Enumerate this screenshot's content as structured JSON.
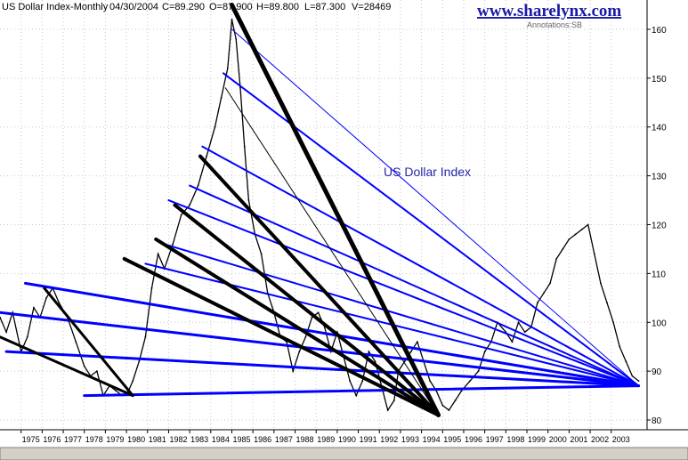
{
  "header": {
    "title": "US Dollar Index-Monthly",
    "date": "04/30/2004",
    "close": "C=89.290",
    "open": "O=87.900",
    "high": "H=89.800",
    "low": "L=87.300",
    "volume": "V=28469"
  },
  "brand": "www.sharelynx.com",
  "annotations_credit": "Annotations:SB",
  "chart_data": {
    "type": "line",
    "title": "",
    "xlabel": "",
    "ylabel": "",
    "annotation": "US Dollar Index",
    "ylim": [
      78,
      166
    ],
    "xlim": [
      1974.0,
      2004.7
    ],
    "y_ticks": [
      80,
      90,
      100,
      110,
      120,
      130,
      140,
      150,
      160
    ],
    "x_tick_labels": [
      "1975",
      "1976",
      "1977",
      "1978",
      "1979",
      "1980",
      "1981",
      "1982",
      "1983",
      "1984",
      "1985",
      "1986",
      "1987",
      "1988",
      "1989",
      "1990",
      "1991",
      "1992",
      "1993",
      "1994",
      "1995",
      "1996",
      "1997",
      "1998",
      "1999",
      "2000",
      "2001",
      "2002",
      "2003"
    ],
    "grid": true,
    "series": [
      {
        "x": [
          1974.0,
          1974.3,
          1974.6,
          1975.0,
          1975.3,
          1975.6,
          1975.9,
          1976.2,
          1976.5,
          1976.8,
          1977.2,
          1977.6,
          1978.0,
          1978.3,
          1978.6,
          1978.9,
          1979.2,
          1979.5,
          1979.8,
          1980.1,
          1980.3,
          1980.6,
          1980.9,
          1981.2,
          1981.5,
          1981.8,
          1982.2,
          1982.6,
          1983.0,
          1983.4,
          1983.8,
          1984.2,
          1984.5,
          1984.8,
          1985.0,
          1985.2,
          1985.4,
          1985.6,
          1985.8,
          1986.1,
          1986.4,
          1986.7,
          1987.0,
          1987.3,
          1987.6,
          1987.9,
          1988.2,
          1988.5,
          1988.8,
          1989.1,
          1989.4,
          1989.7,
          1990.0,
          1990.3,
          1990.6,
          1990.9,
          1991.2,
          1991.5,
          1991.8,
          1992.1,
          1992.4,
          1992.7,
          1992.9,
          1993.2,
          1993.5,
          1993.8,
          1994.1,
          1994.4,
          1994.7,
          1995.0,
          1995.3,
          1995.6,
          1995.9,
          1996.3,
          1996.7,
          1997.0,
          1997.3,
          1997.6,
          1998.0,
          1998.3,
          1998.6,
          1998.9,
          1999.2,
          1999.5,
          1999.8,
          2000.1,
          2000.4,
          2000.7,
          2001.0,
          2001.3,
          2001.6,
          2001.9,
          2002.2,
          2002.5,
          2002.8,
          2003.1,
          2003.4,
          2003.7,
          2004.0,
          2004.3
        ],
        "y": [
          101,
          98,
          102,
          94,
          97,
          103,
          101,
          105,
          107,
          104,
          101,
          96,
          91,
          89,
          90,
          85,
          87,
          86,
          85,
          86,
          88,
          92,
          97,
          107,
          114,
          111,
          116,
          122,
          124,
          128,
          134,
          140,
          146,
          152,
          162,
          158,
          148,
          136,
          125,
          118,
          114,
          106,
          102,
          97,
          96,
          90,
          94,
          97,
          101,
          102,
          99,
          94,
          98,
          93,
          88,
          85,
          88,
          94,
          92,
          87,
          82,
          84,
          90,
          92,
          94,
          96,
          92,
          88,
          86,
          83,
          82,
          84,
          86,
          88,
          90,
          94,
          96,
          100,
          98,
          96,
          100,
          98,
          99,
          104,
          106,
          108,
          113,
          115,
          117,
          118,
          119,
          120,
          114,
          108,
          104,
          100,
          95,
          92,
          89,
          88
        ]
      }
    ],
    "trend_lines": [
      {
        "color": "#0000ff",
        "width": 1,
        "from": [
          1985.0,
          160
        ],
        "to": [
          2004.3,
          87
        ]
      },
      {
        "color": "#0000ff",
        "width": 2,
        "from": [
          1984.6,
          151
        ],
        "to": [
          2004.3,
          87
        ]
      },
      {
        "color": "#0000ff",
        "width": 2,
        "from": [
          1983.6,
          136
        ],
        "to": [
          2004.3,
          87
        ]
      },
      {
        "color": "#0000ff",
        "width": 2,
        "from": [
          1983.0,
          128
        ],
        "to": [
          2004.3,
          87
        ]
      },
      {
        "color": "#0000ff",
        "width": 2,
        "from": [
          1982.0,
          125
        ],
        "to": [
          2004.3,
          87
        ]
      },
      {
        "color": "#0000ff",
        "width": 2,
        "from": [
          1981.8,
          116
        ],
        "to": [
          2004.3,
          87
        ]
      },
      {
        "color": "#0000ff",
        "width": 2,
        "from": [
          1980.9,
          112
        ],
        "to": [
          2004.3,
          87
        ]
      },
      {
        "color": "#0000ff",
        "width": 3,
        "from": [
          1975.2,
          108
        ],
        "to": [
          2004.3,
          87
        ]
      },
      {
        "color": "#0000ff",
        "width": 3,
        "from": [
          1974.0,
          102
        ],
        "to": [
          2004.3,
          87
        ]
      },
      {
        "color": "#0000ff",
        "width": 3,
        "from": [
          1974.3,
          94
        ],
        "to": [
          2004.3,
          87
        ]
      },
      {
        "color": "#0000ff",
        "width": 3,
        "from": [
          1978.0,
          85
        ],
        "to": [
          2004.3,
          87
        ]
      },
      {
        "color": "#000000",
        "width": 5,
        "from": [
          1985.0,
          165
        ],
        "to": [
          1994.8,
          81
        ]
      },
      {
        "color": "#000000",
        "width": 1,
        "from": [
          1984.7,
          148
        ],
        "to": [
          1994.8,
          81
        ]
      },
      {
        "color": "#000000",
        "width": 4,
        "from": [
          1983.5,
          134
        ],
        "to": [
          1994.8,
          81
        ]
      },
      {
        "color": "#000000",
        "width": 4,
        "from": [
          1982.3,
          124
        ],
        "to": [
          1994.8,
          81
        ]
      },
      {
        "color": "#000000",
        "width": 4,
        "from": [
          1981.4,
          117
        ],
        "to": [
          1994.8,
          81
        ]
      },
      {
        "color": "#000000",
        "width": 4,
        "from": [
          1979.9,
          113
        ],
        "to": [
          1994.8,
          81
        ]
      },
      {
        "color": "#000000",
        "width": 3,
        "from": [
          1976.1,
          107
        ],
        "to": [
          1980.3,
          85
        ]
      },
      {
        "color": "#000000",
        "width": 3,
        "from": [
          1974.0,
          97
        ],
        "to": [
          1980.3,
          85
        ]
      }
    ]
  }
}
